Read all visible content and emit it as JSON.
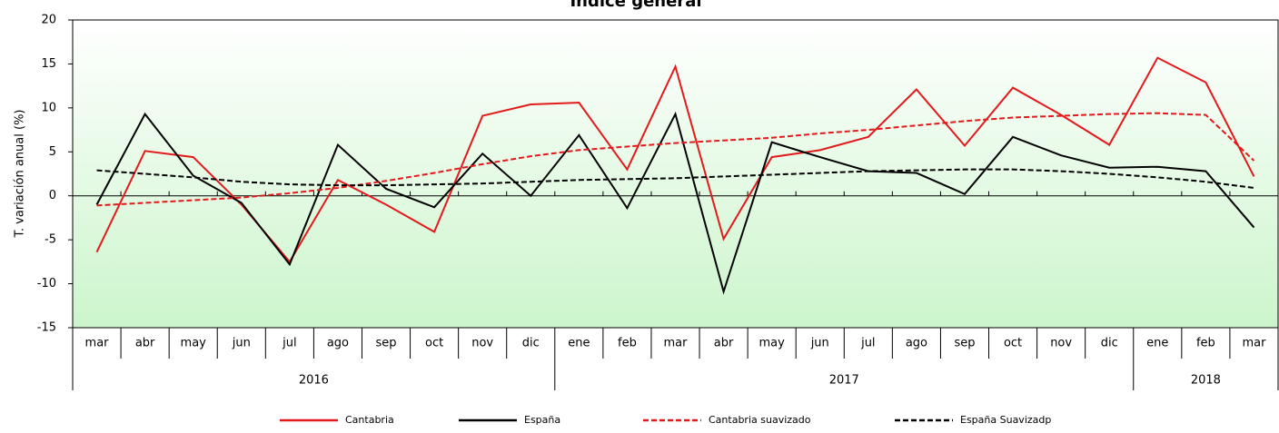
{
  "chart_data": {
    "type": "line",
    "title": "Índice general",
    "ylabel": "T. variación anual (%)",
    "categories": [
      "mar",
      "abr",
      "may",
      "jun",
      "jul",
      "ago",
      "sep",
      "oct",
      "nov",
      "dic",
      "ene",
      "feb",
      "mar",
      "abr",
      "may",
      "jun",
      "jul",
      "ago",
      "sep",
      "oct",
      "nov",
      "dic",
      "ene",
      "feb",
      "mar"
    ],
    "years": [
      "2016",
      "2016",
      "2016",
      "2016",
      "2016",
      "2016",
      "2016",
      "2016",
      "2016",
      "2016",
      "2017",
      "2017",
      "2017",
      "2017",
      "2017",
      "2017",
      "2017",
      "2017",
      "2017",
      "2017",
      "2017",
      "2017",
      "2018",
      "2018",
      "2018"
    ],
    "series": [
      {
        "name": "Cantabria",
        "color": "#e31a1c",
        "dash": false,
        "values": [
          -6.4,
          5.1,
          4.4,
          -1.0,
          -7.5,
          1.8,
          -1.0,
          -4.1,
          9.1,
          10.4,
          10.6,
          3.0,
          14.7,
          -4.9,
          4.4,
          5.2,
          6.7,
          12.1,
          5.7,
          12.3,
          9.2,
          5.8,
          15.7,
          12.9,
          2.2
        ]
      },
      {
        "name": "España",
        "color": "#000000",
        "dash": false,
        "values": [
          -1.0,
          9.3,
          2.3,
          -0.8,
          -7.8,
          5.8,
          0.8,
          -1.3,
          4.8,
          0.0,
          6.9,
          -1.4,
          9.3,
          -10.9,
          6.1,
          4.4,
          2.8,
          2.6,
          0.2,
          6.7,
          4.6,
          3.2,
          3.3,
          2.8,
          -3.6
        ]
      },
      {
        "name": "Cantabria suavizado",
        "color": "#e31a1c",
        "dash": true,
        "values": [
          -1.1,
          -0.8,
          -0.5,
          -0.2,
          0.3,
          0.9,
          1.7,
          2.6,
          3.6,
          4.5,
          5.2,
          5.6,
          6.0,
          6.3,
          6.6,
          7.1,
          7.5,
          8.0,
          8.5,
          8.9,
          9.1,
          9.3,
          9.4,
          9.2,
          4.0
        ]
      },
      {
        "name": "España Suavizadp",
        "color": "#000000",
        "dash": true,
        "values": [
          2.9,
          2.5,
          2.1,
          1.6,
          1.3,
          1.2,
          1.2,
          1.3,
          1.4,
          1.6,
          1.8,
          1.9,
          2.0,
          2.2,
          2.4,
          2.6,
          2.8,
          2.9,
          3.0,
          3.0,
          2.8,
          2.5,
          2.1,
          1.6,
          0.9
        ]
      }
    ],
    "ylim": [
      -15,
      20
    ],
    "yticks": [
      -15,
      -10,
      -5,
      0,
      5,
      10,
      15,
      20
    ],
    "legend": "bottom"
  }
}
